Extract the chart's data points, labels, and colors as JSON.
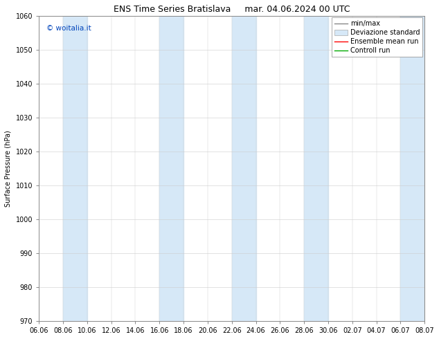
{
  "title_left": "ENS Time Series Bratislava",
  "title_right": "mar. 04.06.2024 00 UTC",
  "ylabel": "Surface Pressure (hPa)",
  "ylim": [
    970,
    1060
  ],
  "yticks": [
    970,
    980,
    990,
    1000,
    1010,
    1020,
    1030,
    1040,
    1050,
    1060
  ],
  "xtick_labels": [
    "06.06",
    "08.06",
    "10.06",
    "12.06",
    "14.06",
    "16.06",
    "18.06",
    "20.06",
    "22.06",
    "24.06",
    "26.06",
    "28.06",
    "30.06",
    "02.07",
    "04.07",
    "06.07",
    "08.07"
  ],
  "watermark": "© woitalia.it",
  "legend_entries": [
    "min/max",
    "Deviazione standard",
    "Ensemble mean run",
    "Controll run"
  ],
  "band_color": "#d6e8f7",
  "background_color": "#ffffff",
  "title_fontsize": 9,
  "axis_fontsize": 7,
  "tick_fontsize": 7,
  "legend_fontsize": 7
}
